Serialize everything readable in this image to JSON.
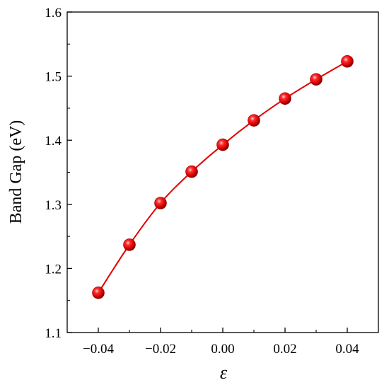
{
  "chart_data": {
    "type": "line",
    "title": "",
    "xlabel": "ε",
    "ylabel": "Band Gap (eV)",
    "xlim": [
      -0.05,
      0.05
    ],
    "ylim": [
      1.1,
      1.6
    ],
    "xticks": [
      -0.04,
      -0.02,
      0.0,
      0.02,
      0.04
    ],
    "xtick_labels": [
      "−0.04",
      "−0.02",
      "0.00",
      "0.02",
      "0.04"
    ],
    "yticks": [
      1.1,
      1.2,
      1.3,
      1.4,
      1.5,
      1.6
    ],
    "ytick_labels": [
      "1.1",
      "1.2",
      "1.3",
      "1.4",
      "1.5",
      "1.6"
    ],
    "grid": false,
    "legend": "none",
    "series": [
      {
        "color": "#e00000",
        "marker": "sphere",
        "x": [
          -0.04,
          -0.03,
          -0.02,
          -0.01,
          0.0,
          0.01,
          0.02,
          0.03,
          0.04
        ],
        "y": [
          1.162,
          1.237,
          1.302,
          1.351,
          1.393,
          1.431,
          1.465,
          1.495,
          1.523
        ]
      }
    ]
  }
}
